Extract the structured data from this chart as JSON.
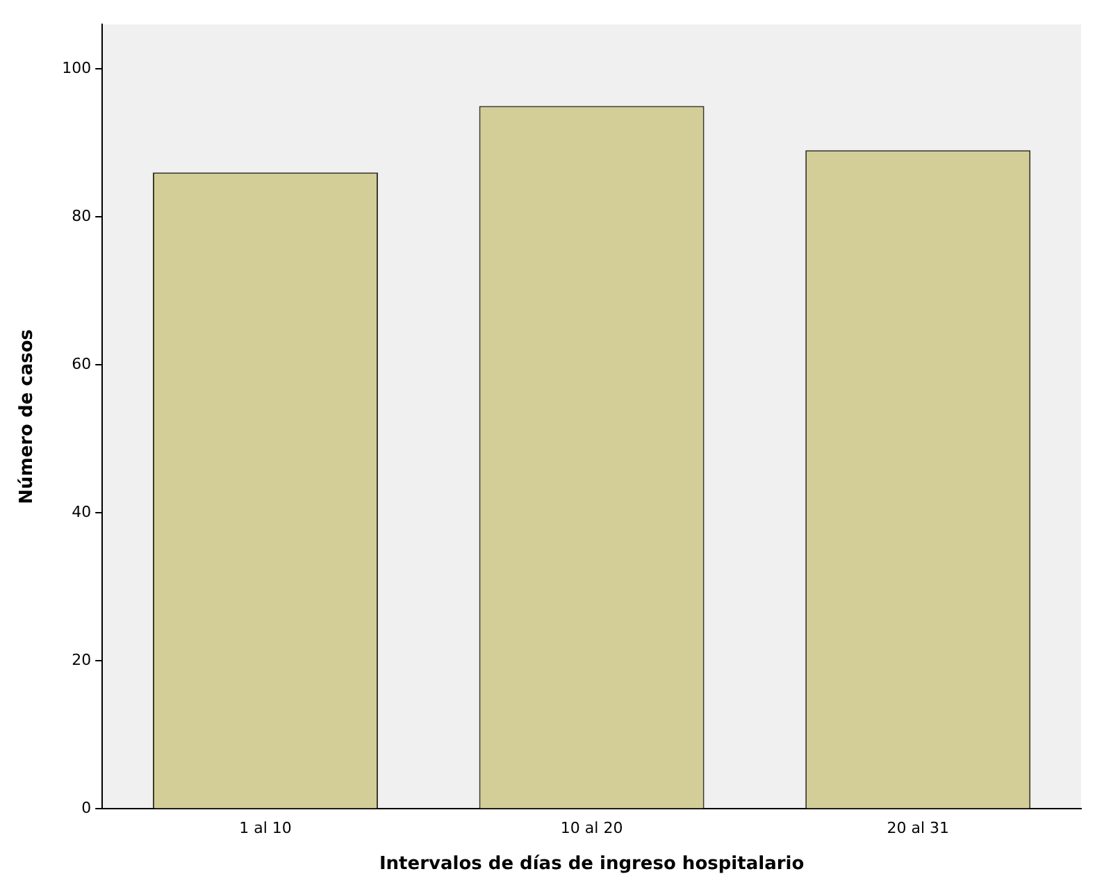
{
  "chart_data": {
    "type": "bar",
    "xlabel": "Intervalos de días de ingreso hospitalario",
    "ylabel": "Número de casos",
    "categories": [
      "1 al 10",
      "10 al 20",
      "20 al 31"
    ],
    "values": [
      86,
      95,
      89
    ],
    "color": "#d3ce97",
    "ylim": [
      0,
      106
    ],
    "yticks": [
      0,
      20,
      40,
      60,
      80,
      100
    ],
    "grid": false,
    "legend": false
  }
}
